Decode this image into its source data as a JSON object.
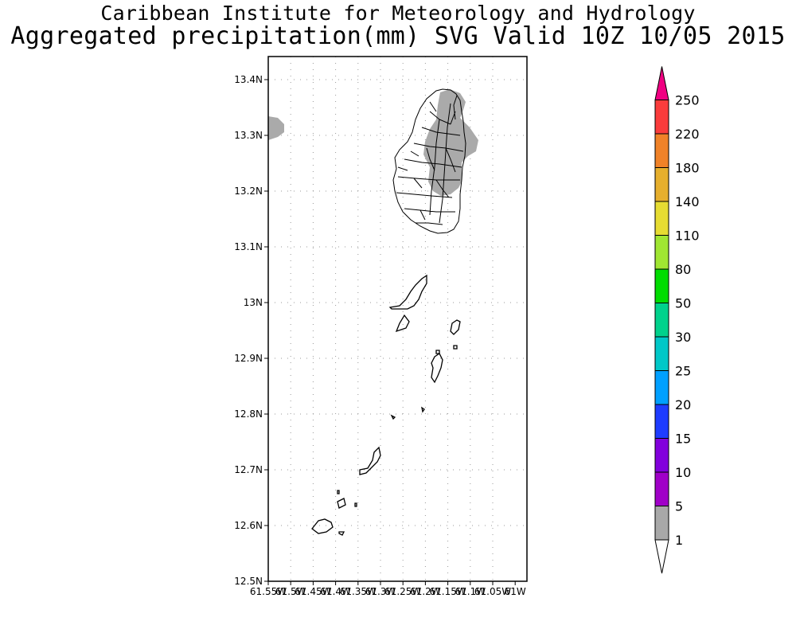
{
  "header": {
    "institute": "Caribbean Institute for Meteorology and Hydrology",
    "product": "Aggregated precipitation(mm) SVG Valid 10Z 10/05 2015"
  },
  "map": {
    "lat_range": [
      12.5,
      13.44
    ],
    "lon_range": [
      -61.55,
      -61.0
    ],
    "grid": true,
    "lat_labels": [
      "13.4N",
      "13.3N",
      "13.2N",
      "13.1N",
      "13N",
      "12.9N",
      "12.8N",
      "12.7N",
      "12.6N",
      "12.5N"
    ],
    "lon_labels": [
      "61.55W",
      "61.5W",
      "61.45W",
      "61.4W",
      "61.35W",
      "61.3W",
      "61.25W",
      "61.2W",
      "61.15W",
      "61.1W",
      "61.05W",
      "61W"
    ],
    "precip_color": "#aaaaaa"
  },
  "colorbar": {
    "labels": [
      "1",
      "5",
      "10",
      "15",
      "20",
      "25",
      "30",
      "50",
      "80",
      "110",
      "140",
      "180",
      "220",
      "250"
    ],
    "colors": [
      "#a8a8a8",
      "#a000c8",
      "#8200dc",
      "#1e3cff",
      "#00a0ff",
      "#00c8c8",
      "#00d28c",
      "#00dc00",
      "#a0e632",
      "#e6dc32",
      "#e6af2d",
      "#f08228",
      "#fa3c3c",
      "#f00082"
    ]
  }
}
